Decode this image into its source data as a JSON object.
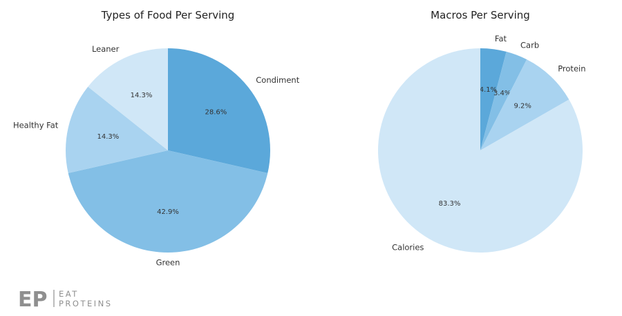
{
  "chart_data": [
    {
      "type": "pie",
      "title": "Types of Food Per Serving",
      "categories": [
        "Condiment",
        "Green",
        "Healthy Fat",
        "Leaner"
      ],
      "values": [
        28.6,
        42.9,
        14.3,
        14.3
      ],
      "percent_labels": [
        "28.6%",
        "42.9%",
        "14.3%",
        "14.3%"
      ],
      "colors": [
        "#5ba8da",
        "#83bfe6",
        "#a9d3f0",
        "#d0e7f7"
      ],
      "start_angle_deg": 90,
      "direction": "clockwise"
    },
    {
      "type": "pie",
      "title": "Macros Per Serving",
      "categories": [
        "Fat",
        "Carb",
        "Protein",
        "Calories"
      ],
      "values": [
        4.1,
        3.4,
        9.2,
        83.3
      ],
      "percent_labels": [
        "4.1%",
        "3.4%",
        "9.2%",
        "83.3%"
      ],
      "colors": [
        "#5ba8da",
        "#83bfe6",
        "#a9d3f0",
        "#d0e7f7"
      ],
      "start_angle_deg": 90,
      "direction": "clockwise"
    }
  ],
  "logo": {
    "mark": "EP",
    "line1": "EAT",
    "line2": "PROTEINS",
    "color": "#8f8f8f"
  }
}
